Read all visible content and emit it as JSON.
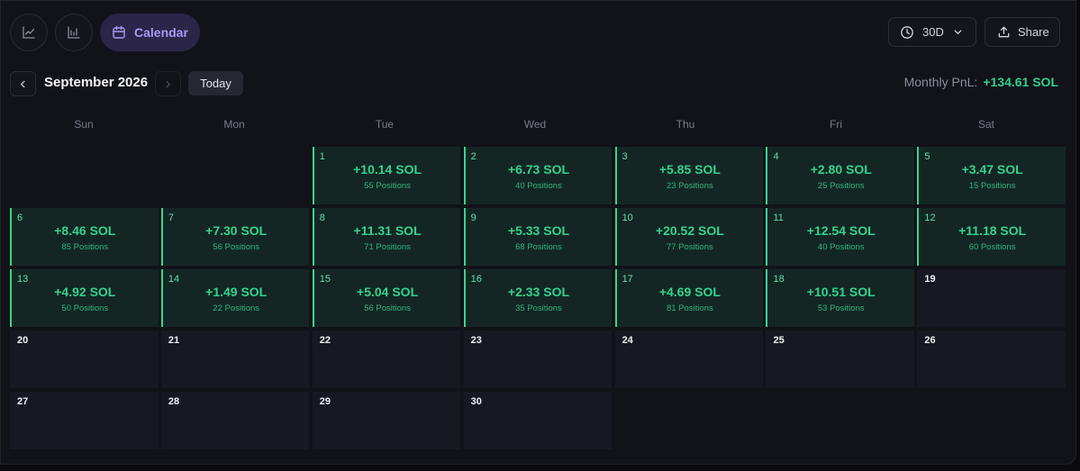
{
  "toolbar": {
    "view_calendar_label": "Calendar",
    "range_label": "30D",
    "share_label": "Share"
  },
  "nav": {
    "month_title": "September 2026",
    "today_label": "Today",
    "monthly_label": "Monthly PnL:",
    "monthly_value": "+134.61 SOL"
  },
  "weekdays": [
    "Sun",
    "Mon",
    "Tue",
    "Wed",
    "Thu",
    "Fri",
    "Sat"
  ],
  "calendar": {
    "leading_blanks": 2,
    "days": [
      {
        "day": "1",
        "pnl": "+10.14 SOL",
        "positions": "55 Positions"
      },
      {
        "day": "2",
        "pnl": "+6.73 SOL",
        "positions": "40 Positions"
      },
      {
        "day": "3",
        "pnl": "+5.85 SOL",
        "positions": "23 Positions"
      },
      {
        "day": "4",
        "pnl": "+2.80 SOL",
        "positions": "25 Positions"
      },
      {
        "day": "5",
        "pnl": "+3.47 SOL",
        "positions": "15 Positions"
      },
      {
        "day": "6",
        "pnl": "+8.46 SOL",
        "positions": "85 Positions"
      },
      {
        "day": "7",
        "pnl": "+7.30 SOL",
        "positions": "56 Positions"
      },
      {
        "day": "8",
        "pnl": "+11.31 SOL",
        "positions": "71 Positions"
      },
      {
        "day": "9",
        "pnl": "+5.33 SOL",
        "positions": "68 Positions"
      },
      {
        "day": "10",
        "pnl": "+20.52 SOL",
        "positions": "77 Positions"
      },
      {
        "day": "11",
        "pnl": "+12.54 SOL",
        "positions": "40 Positions"
      },
      {
        "day": "12",
        "pnl": "+11.18 SOL",
        "positions": "60 Positions"
      },
      {
        "day": "13",
        "pnl": "+4.92 SOL",
        "positions": "50 Positions"
      },
      {
        "day": "14",
        "pnl": "+1.49 SOL",
        "positions": "22 Positions"
      },
      {
        "day": "15",
        "pnl": "+5.04 SOL",
        "positions": "56 Positions"
      },
      {
        "day": "16",
        "pnl": "+2.33 SOL",
        "positions": "35 Positions"
      },
      {
        "day": "17",
        "pnl": "+4.69 SOL",
        "positions": "81 Positions"
      },
      {
        "day": "18",
        "pnl": "+10.51 SOL",
        "positions": "53 Positions"
      },
      {
        "day": "19"
      },
      {
        "day": "20"
      },
      {
        "day": "21"
      },
      {
        "day": "22"
      },
      {
        "day": "23"
      },
      {
        "day": "24"
      },
      {
        "day": "25"
      },
      {
        "day": "26"
      },
      {
        "day": "27"
      },
      {
        "day": "28"
      },
      {
        "day": "29"
      },
      {
        "day": "30"
      }
    ]
  },
  "colors": {
    "accent": "#a998f5",
    "positive": "#33d48e",
    "positive_cell_bg": "#142624",
    "empty_cell_bg": "#181822"
  },
  "icons": {
    "line_chart": "line-chart-icon",
    "bar_chart": "bar-chart-icon",
    "calendar": "calendar-icon",
    "clock": "clock-icon",
    "chevron": "chevron-down-icon",
    "share": "upload-icon",
    "prev": "chevron-left-icon",
    "next": "chevron-right-icon"
  }
}
